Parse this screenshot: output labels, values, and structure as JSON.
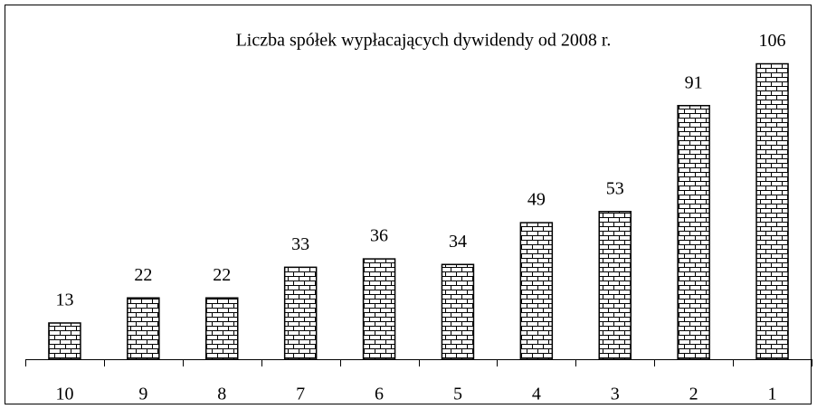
{
  "chart_data": {
    "type": "bar",
    "title": "Liczba spółek wypłacających dywidendy od 2008 r.",
    "categories": [
      "10",
      "9",
      "8",
      "7",
      "6",
      "5",
      "4",
      "3",
      "2",
      "1"
    ],
    "values": [
      13,
      22,
      22,
      33,
      36,
      34,
      49,
      53,
      91,
      106
    ],
    "color": "#000000"
  }
}
